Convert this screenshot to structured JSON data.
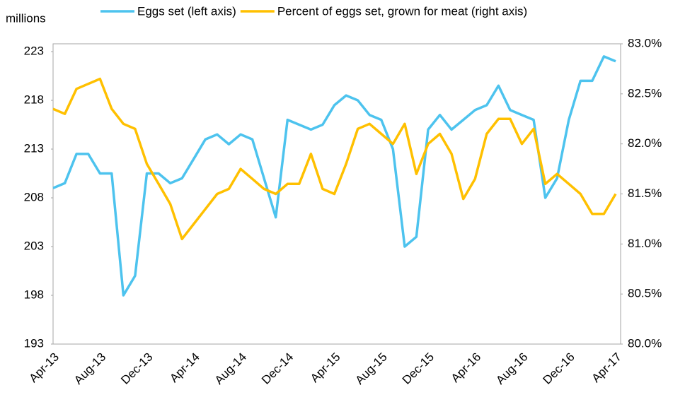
{
  "chart_data": {
    "type": "line",
    "y_unit_label": "millions",
    "categories": [
      "Apr-13",
      null,
      null,
      null,
      "Aug-13",
      null,
      null,
      null,
      "Dec-13",
      null,
      null,
      null,
      "Apr-14",
      null,
      null,
      null,
      "Aug-14",
      null,
      null,
      null,
      "Dec-14",
      null,
      null,
      null,
      "Apr-15",
      null,
      null,
      null,
      "Aug-15",
      null,
      null,
      null,
      "Dec-15",
      null,
      null,
      null,
      "Apr-16",
      null,
      null,
      null,
      "Aug-16",
      null,
      null,
      null,
      "Dec-16",
      null,
      null,
      null,
      "Apr-17"
    ],
    "series": [
      {
        "name": "Eggs set (left axis)",
        "color": "#4dc3ee",
        "axis": "y",
        "values": [
          209,
          209.5,
          212.5,
          212.5,
          210.5,
          210.5,
          198,
          200,
          210.5,
          210.5,
          209.5,
          210,
          212,
          214,
          214.5,
          213.5,
          214.5,
          214,
          210,
          206,
          216,
          215.5,
          215,
          215.5,
          217.5,
          218.5,
          218,
          216.5,
          216,
          213,
          203,
          204,
          215,
          216.5,
          215,
          216,
          217,
          217.5,
          219.5,
          217,
          216.5,
          216,
          208,
          210,
          216,
          220,
          220,
          222.5,
          222
        ]
      },
      {
        "name": "Percent of eggs set, grown for meat (right axis)",
        "color": "#ffc000",
        "axis": "y2",
        "values": [
          82.35,
          82.3,
          82.55,
          82.6,
          82.65,
          82.35,
          82.2,
          82.15,
          81.8,
          81.6,
          81.4,
          81.05,
          81.2,
          81.35,
          81.5,
          81.55,
          81.75,
          81.65,
          81.55,
          81.5,
          81.6,
          81.6,
          81.9,
          81.55,
          81.5,
          81.8,
          82.15,
          82.2,
          82.1,
          82.0,
          82.2,
          81.7,
          82.0,
          82.1,
          81.9,
          81.45,
          81.65,
          82.1,
          82.25,
          82.25,
          82.0,
          82.15,
          81.6,
          81.7,
          81.6,
          81.5,
          81.3,
          81.3,
          81.5
        ]
      }
    ],
    "ylim": [
      193,
      223.8
    ],
    "yticks": [
      193,
      198,
      203,
      208,
      213,
      218,
      223
    ],
    "y2lim": [
      80,
      83
    ],
    "y2ticks": [
      {
        "value": 80,
        "label": "80.0%"
      },
      {
        "value": 80.5,
        "label": "80.5%"
      },
      {
        "value": 81,
        "label": "81.0%"
      },
      {
        "value": 81.5,
        "label": "81.5%"
      },
      {
        "value": 82,
        "label": "82.0%"
      },
      {
        "value": 82.5,
        "label": "82.5%"
      },
      {
        "value": 83,
        "label": "83.0%"
      }
    ],
    "grid": false
  }
}
